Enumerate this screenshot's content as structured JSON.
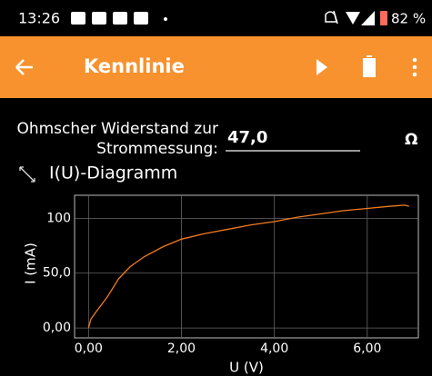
{
  "status_bar": {
    "time": "13:26",
    "battery": "82 %"
  },
  "toolbar": {
    "title": "Kennlinie"
  },
  "form": {
    "label_lines": [
      "Ohmscher Widerstand zur",
      "Strommessung:"
    ],
    "value": "47,0",
    "unit": "Ω"
  },
  "chart_data": {
    "type": "line",
    "title": "I(U)-Diagramm",
    "x_label": "U (V)",
    "y_label": "I (mA)",
    "x": [
      0,
      0.05,
      0.15,
      0.4,
      0.65,
      0.9,
      1.2,
      1.6,
      2.0,
      2.5,
      3.0,
      3.5,
      4.0,
      4.5,
      5.0,
      5.5,
      6.0,
      6.5,
      6.8,
      6.9
    ],
    "series": [
      {
        "name": "I(U)",
        "color": "#f47b20",
        "values": [
          0,
          8,
          14,
          28,
          45,
          56,
          65,
          74,
          81,
          86,
          90,
          94,
          97,
          101,
          104,
          107,
          109,
          111,
          112,
          111
        ]
      }
    ],
    "xlim": [
      -0.3,
      7.1
    ],
    "ylim": [
      -9,
      121
    ],
    "xticks": [
      {
        "value": 0,
        "label": "0,00"
      },
      {
        "value": 2,
        "label": "2,00"
      },
      {
        "value": 4,
        "label": "4,00"
      },
      {
        "value": 6,
        "label": "6,00"
      }
    ],
    "yticks": [
      {
        "value": 0,
        "label": "0,00"
      },
      {
        "value": 50,
        "label": "50,0"
      },
      100
    ],
    "grid": true
  }
}
